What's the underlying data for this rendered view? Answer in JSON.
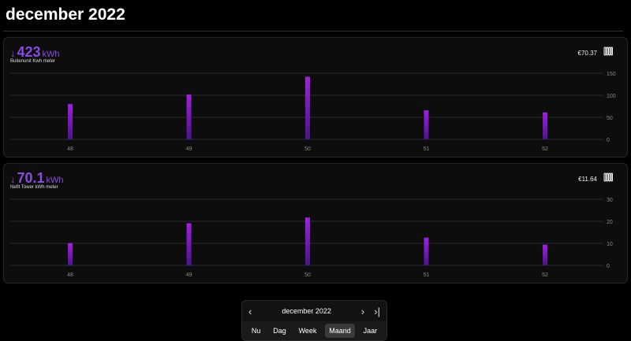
{
  "header": {
    "title": "december 2022"
  },
  "colors": {
    "accent": "#8a4be0",
    "bar_top": "#a020e0",
    "bar_bottom": "#4a148c"
  },
  "cards": [
    {
      "value": "423",
      "unit": "kWh",
      "arrow": "↓",
      "label": "Buitenunit Kwh meter",
      "cost": "€70.37",
      "icon": "radiator-icon"
    },
    {
      "value": "70.1",
      "unit": "kWh",
      "arrow": "↓",
      "label": "Nefit Tower kWh meter",
      "cost": "€11.64",
      "icon": "radiator-icon"
    }
  ],
  "chart_data": [
    {
      "type": "bar",
      "categories": [
        "48",
        "49",
        "50",
        "51",
        "52"
      ],
      "values": [
        80,
        102,
        142,
        66,
        61
      ],
      "ylim": [
        0,
        150
      ],
      "yticks": [
        0,
        50,
        100,
        150
      ],
      "grid": true
    },
    {
      "type": "bar",
      "categories": [
        "48",
        "49",
        "50",
        "51",
        "52"
      ],
      "values": [
        10.1,
        19.1,
        21.7,
        12.6,
        9.4
      ],
      "ylim": [
        0,
        30
      ],
      "yticks": [
        0,
        10,
        20,
        30
      ],
      "grid": true
    }
  ],
  "nav": {
    "period": "december 2022",
    "prev": "‹",
    "next": "›",
    "last": "›|",
    "tabs": [
      "Nu",
      "Dag",
      "Week",
      "Maand",
      "Jaar"
    ],
    "active": "Maand"
  }
}
